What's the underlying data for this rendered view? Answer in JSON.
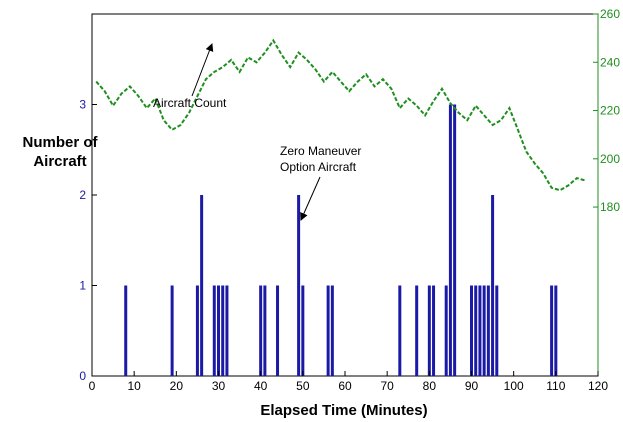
{
  "chart_data": {
    "type": "bar",
    "xlabel": "Elapsed Time (Minutes)",
    "ylabel_line1": "Number of",
    "ylabel_line2": "Aircraft",
    "xlim": [
      0,
      120
    ],
    "ylim": [
      0,
      4
    ],
    "y2lim": [
      110,
      260
    ],
    "x_ticks": [
      0,
      10,
      20,
      30,
      40,
      50,
      60,
      70,
      80,
      90,
      100,
      110,
      120
    ],
    "y_ticks": [
      0,
      1,
      2,
      3
    ],
    "y2_ticks": [
      180,
      200,
      220,
      240,
      260
    ],
    "grid": false,
    "colors": {
      "bars": "#1a1aa6",
      "line": "#1f8f1f",
      "left_ticks": "#1a1aa6",
      "right_ticks": "#1f8f1f"
    },
    "series": [
      {
        "type": "bar",
        "name": "Zero Maneuver Option Aircraft",
        "x": [
          8,
          19,
          25,
          26,
          29,
          30,
          31,
          32,
          40,
          41,
          44,
          49,
          50,
          56,
          57,
          73,
          77,
          80,
          81,
          84,
          85,
          86,
          90,
          91,
          92,
          93,
          94,
          95,
          96,
          109,
          110
        ],
        "values": [
          1,
          1,
          1,
          2,
          1,
          1,
          1,
          1,
          1,
          1,
          1,
          2,
          1,
          1,
          1,
          1,
          1,
          1,
          1,
          1,
          3,
          3,
          1,
          1,
          1,
          1,
          1,
          2,
          1,
          1,
          1
        ]
      },
      {
        "type": "line",
        "name": "Aircraft Count",
        "axis": "right",
        "x": [
          1,
          3,
          5,
          7,
          9,
          11,
          13,
          15,
          17,
          19,
          21,
          23,
          25,
          27,
          29,
          31,
          33,
          35,
          37,
          39,
          41,
          43,
          45,
          47,
          49,
          51,
          53,
          55,
          57,
          59,
          61,
          63,
          65,
          67,
          69,
          71,
          73,
          75,
          77,
          79,
          81,
          83,
          85,
          87,
          89,
          91,
          93,
          95,
          97,
          99,
          101,
          103,
          105,
          107,
          109,
          111,
          113,
          115,
          117
        ],
        "values": [
          232,
          228,
          222,
          227,
          230,
          226,
          221,
          225,
          216,
          212,
          214,
          219,
          226,
          233,
          236,
          238,
          241,
          236,
          242,
          240,
          244,
          249,
          243,
          238,
          244,
          241,
          237,
          232,
          236,
          232,
          228,
          232,
          235,
          230,
          233,
          229,
          221,
          225,
          222,
          218,
          224,
          229,
          223,
          219,
          216,
          222,
          218,
          214,
          216,
          221,
          212,
          203,
          198,
          194,
          188,
          187,
          189,
          192,
          191
        ]
      }
    ],
    "annotations": [
      {
        "text": "Aircraft Count"
      },
      {
        "text_line1": "Zero Maneuver",
        "text_line2": "Option Aircraft"
      }
    ]
  }
}
